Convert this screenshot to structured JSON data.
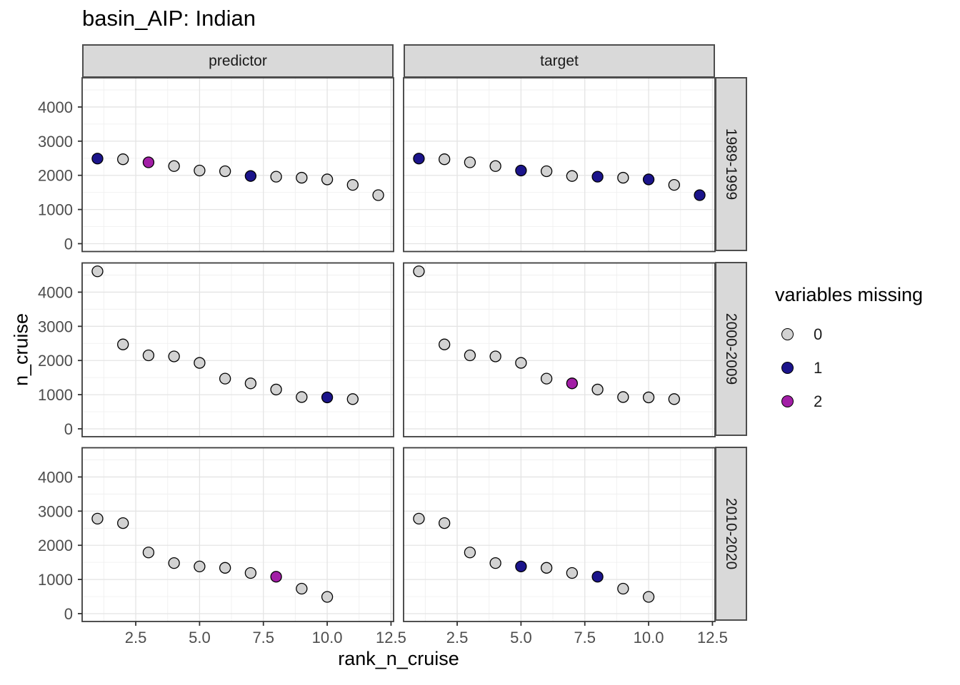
{
  "chart_data": {
    "type": "scatter",
    "title": "basin_AIP: Indian",
    "xlabel": "rank_n_cruise",
    "ylabel": "n_cruise",
    "facet_cols": [
      "predictor",
      "target"
    ],
    "facet_rows": [
      "1989-1999",
      "2000-2009",
      "2010-2020"
    ],
    "xlim": [
      0.4,
      12.6
    ],
    "ylim": [
      -230,
      4855
    ],
    "x_ticks": [
      2.5,
      5.0,
      7.5,
      10.0,
      12.5
    ],
    "x_tick_labels": [
      "2.5",
      "5.0",
      "7.5",
      "10.0",
      "12.5"
    ],
    "y_ticks": [
      0,
      1000,
      2000,
      3000,
      4000
    ],
    "y_tick_labels": [
      "0",
      "1000",
      "2000",
      "3000",
      "4000"
    ],
    "grid": {
      "show": true,
      "x_minor": [
        1.25,
        3.75,
        6.25,
        8.75,
        11.25
      ],
      "y_minor": [
        500,
        1500,
        2500,
        3500,
        4500
      ]
    },
    "legend": {
      "title": "variables missing",
      "position": "right",
      "entries": [
        {
          "label": "0",
          "color": "#d2d2d2"
        },
        {
          "label": "1",
          "color": "#1b148b"
        },
        {
          "label": "2",
          "color": "#a21ea6"
        }
      ]
    },
    "panels": [
      {
        "facet_col": "predictor",
        "facet_row": "1989-1999",
        "points": [
          {
            "rank": 1,
            "n_cruise": 2490,
            "missing": 1
          },
          {
            "rank": 2,
            "n_cruise": 2470,
            "missing": 0
          },
          {
            "rank": 3,
            "n_cruise": 2380,
            "missing": 2
          },
          {
            "rank": 4,
            "n_cruise": 2270,
            "missing": 0
          },
          {
            "rank": 5,
            "n_cruise": 2140,
            "missing": 0
          },
          {
            "rank": 6,
            "n_cruise": 2120,
            "missing": 0
          },
          {
            "rank": 7,
            "n_cruise": 1980,
            "missing": 1
          },
          {
            "rank": 8,
            "n_cruise": 1960,
            "missing": 0
          },
          {
            "rank": 9,
            "n_cruise": 1930,
            "missing": 0
          },
          {
            "rank": 10,
            "n_cruise": 1880,
            "missing": 0
          },
          {
            "rank": 11,
            "n_cruise": 1720,
            "missing": 0
          },
          {
            "rank": 12,
            "n_cruise": 1420,
            "missing": 0
          }
        ]
      },
      {
        "facet_col": "target",
        "facet_row": "1989-1999",
        "points": [
          {
            "rank": 1,
            "n_cruise": 2490,
            "missing": 1
          },
          {
            "rank": 2,
            "n_cruise": 2470,
            "missing": 0
          },
          {
            "rank": 3,
            "n_cruise": 2380,
            "missing": 0
          },
          {
            "rank": 4,
            "n_cruise": 2270,
            "missing": 0
          },
          {
            "rank": 5,
            "n_cruise": 2140,
            "missing": 1
          },
          {
            "rank": 6,
            "n_cruise": 2120,
            "missing": 0
          },
          {
            "rank": 7,
            "n_cruise": 1980,
            "missing": 0
          },
          {
            "rank": 8,
            "n_cruise": 1960,
            "missing": 1
          },
          {
            "rank": 9,
            "n_cruise": 1930,
            "missing": 0
          },
          {
            "rank": 10,
            "n_cruise": 1880,
            "missing": 1
          },
          {
            "rank": 11,
            "n_cruise": 1720,
            "missing": 0
          },
          {
            "rank": 12,
            "n_cruise": 1420,
            "missing": 1
          }
        ]
      },
      {
        "facet_col": "predictor",
        "facet_row": "2000-2009",
        "points": [
          {
            "rank": 1,
            "n_cruise": 4610,
            "missing": 0
          },
          {
            "rank": 2,
            "n_cruise": 2470,
            "missing": 0
          },
          {
            "rank": 3,
            "n_cruise": 2150,
            "missing": 0
          },
          {
            "rank": 4,
            "n_cruise": 2120,
            "missing": 0
          },
          {
            "rank": 5,
            "n_cruise": 1930,
            "missing": 0
          },
          {
            "rank": 6,
            "n_cruise": 1470,
            "missing": 0
          },
          {
            "rank": 7,
            "n_cruise": 1330,
            "missing": 0
          },
          {
            "rank": 8,
            "n_cruise": 1150,
            "missing": 0
          },
          {
            "rank": 9,
            "n_cruise": 930,
            "missing": 0
          },
          {
            "rank": 10,
            "n_cruise": 920,
            "missing": 1
          },
          {
            "rank": 11,
            "n_cruise": 870,
            "missing": 0
          }
        ]
      },
      {
        "facet_col": "target",
        "facet_row": "2000-2009",
        "points": [
          {
            "rank": 1,
            "n_cruise": 4610,
            "missing": 0
          },
          {
            "rank": 2,
            "n_cruise": 2470,
            "missing": 0
          },
          {
            "rank": 3,
            "n_cruise": 2150,
            "missing": 0
          },
          {
            "rank": 4,
            "n_cruise": 2120,
            "missing": 0
          },
          {
            "rank": 5,
            "n_cruise": 1930,
            "missing": 0
          },
          {
            "rank": 6,
            "n_cruise": 1470,
            "missing": 0
          },
          {
            "rank": 7,
            "n_cruise": 1330,
            "missing": 2
          },
          {
            "rank": 8,
            "n_cruise": 1150,
            "missing": 0
          },
          {
            "rank": 9,
            "n_cruise": 930,
            "missing": 0
          },
          {
            "rank": 10,
            "n_cruise": 920,
            "missing": 0
          },
          {
            "rank": 11,
            "n_cruise": 870,
            "missing": 0
          }
        ]
      },
      {
        "facet_col": "predictor",
        "facet_row": "2010-2020",
        "points": [
          {
            "rank": 1,
            "n_cruise": 2780,
            "missing": 0
          },
          {
            "rank": 2,
            "n_cruise": 2650,
            "missing": 0
          },
          {
            "rank": 3,
            "n_cruise": 1790,
            "missing": 0
          },
          {
            "rank": 4,
            "n_cruise": 1480,
            "missing": 0
          },
          {
            "rank": 5,
            "n_cruise": 1380,
            "missing": 0
          },
          {
            "rank": 6,
            "n_cruise": 1340,
            "missing": 0
          },
          {
            "rank": 7,
            "n_cruise": 1190,
            "missing": 0
          },
          {
            "rank": 8,
            "n_cruise": 1080,
            "missing": 2
          },
          {
            "rank": 9,
            "n_cruise": 730,
            "missing": 0
          },
          {
            "rank": 10,
            "n_cruise": 490,
            "missing": 0
          }
        ]
      },
      {
        "facet_col": "target",
        "facet_row": "2010-2020",
        "points": [
          {
            "rank": 1,
            "n_cruise": 2780,
            "missing": 0
          },
          {
            "rank": 2,
            "n_cruise": 2650,
            "missing": 0
          },
          {
            "rank": 3,
            "n_cruise": 1790,
            "missing": 0
          },
          {
            "rank": 4,
            "n_cruise": 1480,
            "missing": 0
          },
          {
            "rank": 5,
            "n_cruise": 1380,
            "missing": 1
          },
          {
            "rank": 6,
            "n_cruise": 1340,
            "missing": 0
          },
          {
            "rank": 7,
            "n_cruise": 1190,
            "missing": 0
          },
          {
            "rank": 8,
            "n_cruise": 1080,
            "missing": 1
          },
          {
            "rank": 9,
            "n_cruise": 730,
            "missing": 0
          },
          {
            "rank": 10,
            "n_cruise": 490,
            "missing": 0
          }
        ]
      }
    ]
  }
}
